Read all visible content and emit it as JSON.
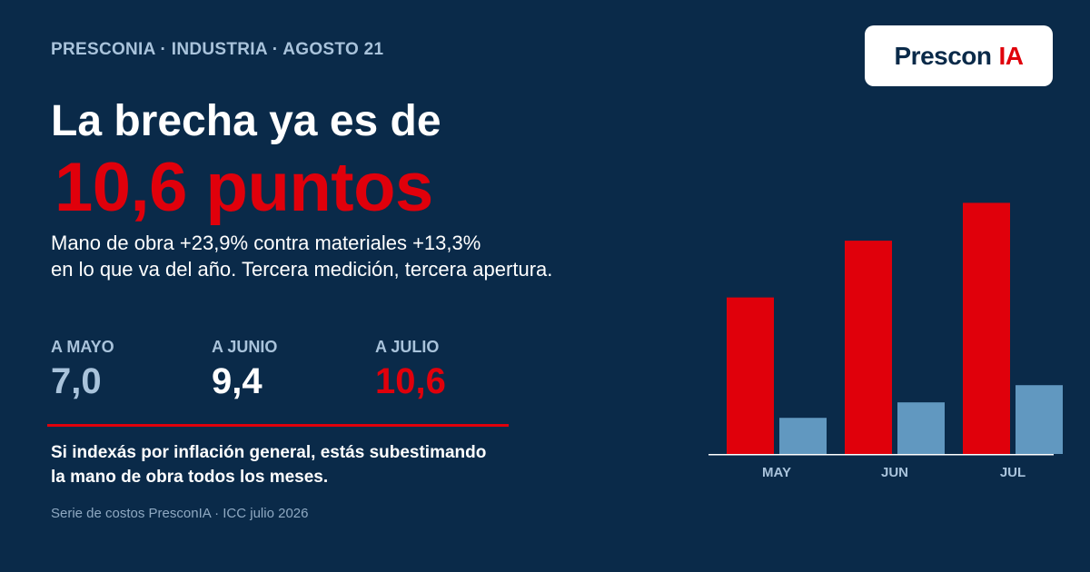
{
  "header": {
    "kicker": "PRESCONIA · INDUSTRIA · AGOSTO 21",
    "logo_brand": "Prescon",
    "logo_ia": "IA"
  },
  "headline": "La brecha ya es de",
  "big_number": "10,6 puntos",
  "subtitle": {
    "line1": "Mano de obra +23,9% contra materiales +13,3%",
    "line2": "en lo que va del año. Tercera medición, tercera apertura."
  },
  "stats": [
    {
      "label": "A MAYO",
      "value": "7,0",
      "color": "#a9c3db"
    },
    {
      "label": "A JUNIO",
      "value": "9,4",
      "color": "#ffffff"
    },
    {
      "label": "A JULIO",
      "value": "10,6",
      "color": "#e0000b"
    }
  ],
  "note": {
    "line1": "Si indexás por inflación general, estás subestimando",
    "line2": "la mano de obra todos los meses."
  },
  "source": "Serie de costos PresconIA · ICC julio 2026",
  "colors": {
    "background": "#0a2a49",
    "red": "#e0000b",
    "blue": "#6198c0",
    "muted": "#a9c3db"
  },
  "chart_data": {
    "type": "bar",
    "categories": [
      "MAY",
      "JUN",
      "JUL"
    ],
    "series": [
      {
        "values": [
          18.4,
          21.7,
          23.9
        ],
        "color": "#e0000b"
      },
      {
        "values": [
          11.4,
          12.3,
          13.3
        ],
        "color": "#6198c0"
      }
    ],
    "ylim": [
      9.3,
      25.4
    ],
    "grid": false,
    "legend": "none",
    "title": "",
    "xlabel": "",
    "ylabel": ""
  }
}
